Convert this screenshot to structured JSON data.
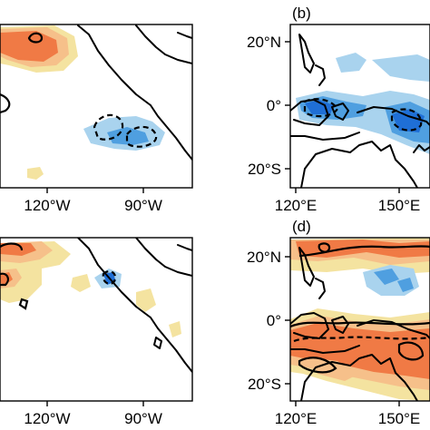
{
  "panels": [
    {
      "id": "a",
      "label": "",
      "x_ticks": [
        "120°W",
        "90°W"
      ],
      "y_ticks": []
    },
    {
      "id": "b",
      "label": "(b)",
      "x_ticks": [
        "120°E",
        "150°E"
      ],
      "y_ticks": [
        "20°N",
        "0°",
        "20°S"
      ]
    },
    {
      "id": "c",
      "label": "",
      "x_ticks": [
        "120°W",
        "90°W"
      ],
      "y_ticks": []
    },
    {
      "id": "d",
      "label": "(d)",
      "x_ticks": [
        "120°E",
        "150°E"
      ],
      "y_ticks": [
        "20°N",
        "0°",
        "20°S"
      ]
    }
  ],
  "colors": {
    "strong_positive": "#f07a45",
    "moderate_positive": "#f6c08a",
    "weak_positive": "#f4e3a0",
    "weak_negative": "#a9d3ee",
    "moderate_negative": "#4f9fe0",
    "strong_negative": "#1f6fd6",
    "coastline": "#000000"
  }
}
